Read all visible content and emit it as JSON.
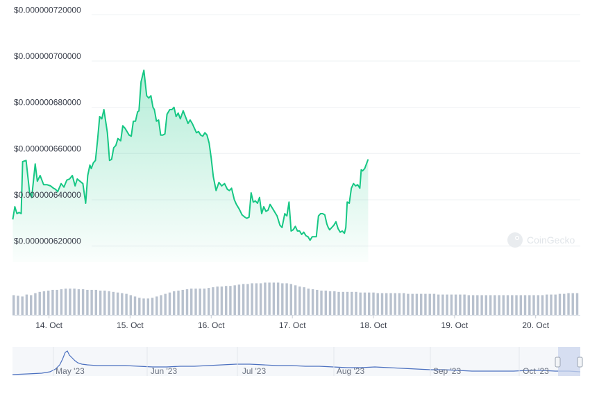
{
  "chart_data": {
    "type": "line",
    "y_axis": {
      "ticks": [
        {
          "label": "$0.000000620000",
          "value": 6.2e-07
        },
        {
          "label": "$0.000000640000",
          "value": 6.4e-07
        },
        {
          "label": "$0.000000660000",
          "value": 6.6e-07
        },
        {
          "label": "$0.000000680000",
          "value": 6.8e-07
        },
        {
          "label": "$0.000000700000",
          "value": 7e-07
        },
        {
          "label": "$0.000000720000",
          "value": 7.2e-07
        }
      ],
      "ylim": [
        6.13e-07,
        7.21e-07
      ],
      "grid": true
    },
    "x_axis": {
      "ticks": [
        {
          "label": "14. Oct",
          "day": 1
        },
        {
          "label": "15. Oct",
          "day": 2
        },
        {
          "label": "16. Oct",
          "day": 3
        },
        {
          "label": "17. Oct",
          "day": 4
        },
        {
          "label": "18. Oct",
          "day": 5
        },
        {
          "label": "19. Oct",
          "day": 6
        },
        {
          "label": "20. Oct",
          "day": 7
        }
      ],
      "xlim": [
        0.55,
        7.55
      ]
    },
    "series": [
      {
        "color": "#16c784",
        "points": [
          [
            0.553,
            6.315e-07
          ],
          [
            0.579,
            6.37e-07
          ],
          [
            0.605,
            6.34e-07
          ],
          [
            0.631,
            6.345e-07
          ],
          [
            0.657,
            6.34e-07
          ],
          [
            0.675,
            6.565e-07
          ],
          [
            0.718,
            6.57e-07
          ],
          [
            0.761,
            6.43e-07
          ],
          [
            0.787,
            6.41e-07
          ],
          [
            0.83,
            6.555e-07
          ],
          [
            0.856,
            6.48e-07
          ],
          [
            0.891,
            6.505e-07
          ],
          [
            0.934,
            6.465e-07
          ],
          [
            0.977,
            6.465e-07
          ],
          [
            1.02,
            6.46e-07
          ],
          [
            1.055,
            6.45e-07
          ],
          [
            1.081,
            6.445e-07
          ],
          [
            1.107,
            6.435e-07
          ],
          [
            1.15,
            6.47e-07
          ],
          [
            1.184,
            6.455e-07
          ],
          [
            1.219,
            6.485e-07
          ],
          [
            1.253,
            6.49e-07
          ],
          [
            1.288,
            6.505e-07
          ],
          [
            1.322,
            6.46e-07
          ],
          [
            1.348,
            6.49e-07
          ],
          [
            1.383,
            6.48e-07
          ],
          [
            1.418,
            6.47e-07
          ],
          [
            1.452,
            6.385e-07
          ],
          [
            1.478,
            6.505e-07
          ],
          [
            1.504,
            6.55e-07
          ],
          [
            1.521,
            6.535e-07
          ],
          [
            1.547,
            6.56e-07
          ],
          [
            1.573,
            6.57e-07
          ],
          [
            1.599,
            6.66e-07
          ],
          [
            1.625,
            6.76e-07
          ],
          [
            1.651,
            6.75e-07
          ],
          [
            1.677,
            6.79e-07
          ],
          [
            1.72,
            6.69e-07
          ],
          [
            1.746,
            6.57e-07
          ],
          [
            1.772,
            6.575e-07
          ],
          [
            1.798,
            6.625e-07
          ],
          [
            1.824,
            6.635e-07
          ],
          [
            1.85,
            6.665e-07
          ],
          [
            1.884,
            6.655e-07
          ],
          [
            1.91,
            6.72e-07
          ],
          [
            1.936,
            6.71e-07
          ],
          [
            1.962,
            6.695e-07
          ],
          [
            1.988,
            6.68e-07
          ],
          [
            2.014,
            6.675e-07
          ],
          [
            2.04,
            6.74e-07
          ],
          [
            2.066,
            6.74e-07
          ],
          [
            2.092,
            6.78e-07
          ],
          [
            2.109,
            6.785e-07
          ],
          [
            2.135,
            6.91e-07
          ],
          [
            2.17,
            6.96e-07
          ],
          [
            2.204,
            6.85e-07
          ],
          [
            2.23,
            6.84e-07
          ],
          [
            2.256,
            6.85e-07
          ],
          [
            2.282,
            6.8e-07
          ],
          [
            2.299,
            6.79e-07
          ],
          [
            2.325,
            6.74e-07
          ],
          [
            2.351,
            6.745e-07
          ],
          [
            2.377,
            6.68e-07
          ],
          [
            2.403,
            6.68e-07
          ],
          [
            2.429,
            6.685e-07
          ],
          [
            2.455,
            6.77e-07
          ],
          [
            2.489,
            6.79e-07
          ],
          [
            2.515,
            6.79e-07
          ],
          [
            2.541,
            6.8e-07
          ],
          [
            2.567,
            6.76e-07
          ],
          [
            2.593,
            6.775e-07
          ],
          [
            2.619,
            6.75e-07
          ],
          [
            2.654,
            6.785e-07
          ],
          [
            2.688,
            6.755e-07
          ],
          [
            2.714,
            6.73e-07
          ],
          [
            2.74,
            6.745e-07
          ],
          [
            2.766,
            6.73e-07
          ],
          [
            2.792,
            6.71e-07
          ],
          [
            2.818,
            6.69e-07
          ],
          [
            2.844,
            6.695e-07
          ],
          [
            2.87,
            6.68e-07
          ],
          [
            2.896,
            6.675e-07
          ],
          [
            2.922,
            6.69e-07
          ],
          [
            2.948,
            6.68e-07
          ],
          [
            2.974,
            6.645e-07
          ],
          [
            3.0,
            6.58e-07
          ],
          [
            3.026,
            6.5e-07
          ],
          [
            3.06,
            6.44e-07
          ],
          [
            3.095,
            6.475e-07
          ],
          [
            3.129,
            6.46e-07
          ],
          [
            3.164,
            6.47e-07
          ],
          [
            3.199,
            6.445e-07
          ],
          [
            3.225,
            6.44e-07
          ],
          [
            3.251,
            6.45e-07
          ],
          [
            3.285,
            6.4e-07
          ],
          [
            3.311,
            6.38e-07
          ],
          [
            3.345,
            6.36e-07
          ],
          [
            3.38,
            6.335e-07
          ],
          [
            3.414,
            6.325e-07
          ],
          [
            3.44,
            6.32e-07
          ],
          [
            3.466,
            6.325e-07
          ],
          [
            3.492,
            6.43e-07
          ],
          [
            3.518,
            6.39e-07
          ],
          [
            3.544,
            6.395e-07
          ],
          [
            3.57,
            6.385e-07
          ],
          [
            3.596,
            6.41e-07
          ],
          [
            3.622,
            6.34e-07
          ],
          [
            3.648,
            6.37e-07
          ],
          [
            3.674,
            6.35e-07
          ],
          [
            3.7,
            6.355e-07
          ],
          [
            3.726,
            6.38e-07
          ],
          [
            3.752,
            6.365e-07
          ],
          [
            3.778,
            6.35e-07
          ],
          [
            3.812,
            6.33e-07
          ],
          [
            3.847,
            6.29e-07
          ],
          [
            3.873,
            6.28e-07
          ],
          [
            3.907,
            6.34e-07
          ],
          [
            3.933,
            6.33e-07
          ],
          [
            3.959,
            6.39e-07
          ],
          [
            3.985,
            6.265e-07
          ],
          [
            4.011,
            6.27e-07
          ],
          [
            4.037,
            6.285e-07
          ],
          [
            4.063,
            6.265e-07
          ],
          [
            4.089,
            6.265e-07
          ],
          [
            4.115,
            6.25e-07
          ],
          [
            4.141,
            6.26e-07
          ],
          [
            4.167,
            6.245e-07
          ],
          [
            4.193,
            6.24e-07
          ],
          [
            4.219,
            6.225e-07
          ],
          [
            4.245,
            6.24e-07
          ],
          [
            4.271,
            6.24e-07
          ],
          [
            4.296,
            6.24e-07
          ],
          [
            4.322,
            6.33e-07
          ],
          [
            4.348,
            6.34e-07
          ],
          [
            4.374,
            6.34e-07
          ],
          [
            4.4,
            6.335e-07
          ],
          [
            4.426,
            6.295e-07
          ],
          [
            4.443,
            6.28e-07
          ],
          [
            4.46,
            6.27e-07
          ],
          [
            4.486,
            6.28e-07
          ],
          [
            4.512,
            6.29e-07
          ],
          [
            4.538,
            6.305e-07
          ],
          [
            4.564,
            6.275e-07
          ],
          [
            4.59,
            6.26e-07
          ],
          [
            4.616,
            6.265e-07
          ],
          [
            4.642,
            6.255e-07
          ],
          [
            4.659,
            6.28e-07
          ],
          [
            4.676,
            6.39e-07
          ],
          [
            4.702,
            6.385e-07
          ],
          [
            4.728,
            6.45e-07
          ],
          [
            4.754,
            6.47e-07
          ],
          [
            4.78,
            6.46e-07
          ],
          [
            4.806,
            6.465e-07
          ],
          [
            4.832,
            6.45e-07
          ],
          [
            4.849,
            6.53e-07
          ],
          [
            4.866,
            6.525e-07
          ],
          [
            4.892,
            6.535e-07
          ],
          [
            4.935,
            6.575e-07
          ]
        ]
      }
    ],
    "volume": {
      "color": "#b8c1ce",
      "values": [
        30,
        29,
        28,
        31,
        30,
        33,
        35,
        36,
        37,
        38,
        38,
        39,
        40,
        40,
        40,
        39,
        39,
        38,
        38,
        38,
        37,
        37,
        36,
        35,
        34,
        33,
        32,
        30,
        28,
        26,
        25,
        25,
        26,
        28,
        30,
        32,
        34,
        36,
        37,
        38,
        39,
        40,
        40,
        40,
        40,
        41,
        42,
        43,
        43,
        44,
        44,
        45,
        46,
        47,
        47,
        48,
        48,
        48,
        49,
        49,
        49,
        49,
        48,
        48,
        47,
        45,
        43,
        42,
        40,
        39,
        38,
        37,
        37,
        36,
        36,
        35,
        35,
        35,
        35,
        35,
        34,
        34,
        34,
        34,
        33,
        33,
        33,
        33,
        33,
        33,
        33,
        32,
        32,
        32,
        32,
        32,
        32,
        32,
        31,
        31,
        31,
        31,
        31,
        31,
        31,
        30,
        30,
        30,
        30,
        30,
        30,
        30,
        30,
        30,
        30,
        30,
        30,
        30,
        30,
        30,
        30,
        30,
        30,
        31,
        31,
        31,
        32,
        32,
        33,
        33,
        33
      ]
    },
    "navigator": {
      "ticks": [
        "May '23",
        "Jun '23",
        "Jul '23",
        "Aug '23",
        "Sep '23",
        "Oct '23"
      ],
      "line_color": "#4a6fbf",
      "selection_color": "#cbd6ee"
    },
    "watermark": "CoinGecko"
  }
}
